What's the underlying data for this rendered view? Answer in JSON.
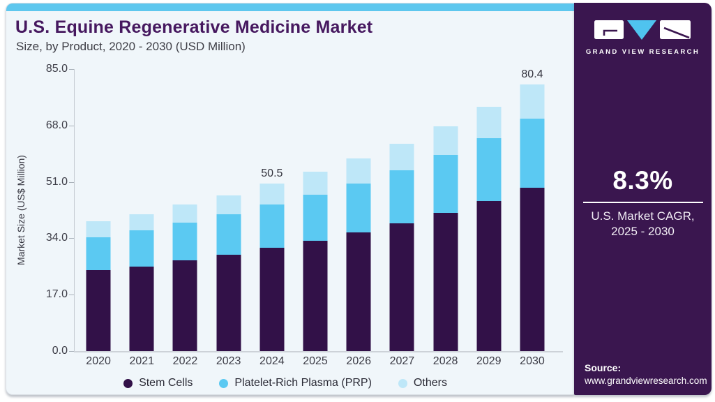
{
  "chart_data": {
    "type": "bar",
    "stacked": true,
    "title": "U.S. Equine Regenerative Medicine Market",
    "subtitle": "Size, by Product, 2020 - 2030 (USD Million)",
    "ylabel": "Market Size (US$ Million)",
    "ylim": [
      0,
      85
    ],
    "yticks": [
      {
        "label": "0.0",
        "value": 0
      },
      {
        "label": "17.0",
        "value": 17
      },
      {
        "label": "34.0",
        "value": 34
      },
      {
        "label": "51.0",
        "value": 51
      },
      {
        "label": "68.0",
        "value": 68
      },
      {
        "label": "85.0",
        "value": 85
      }
    ],
    "categories": [
      "2020",
      "2021",
      "2022",
      "2023",
      "2024",
      "2025",
      "2026",
      "2027",
      "2028",
      "2029",
      "2030"
    ],
    "series": [
      {
        "name": "Stem Cells",
        "color": "#321148",
        "values": [
          24.5,
          25.5,
          27.3,
          29.1,
          31.1,
          33.3,
          35.8,
          38.6,
          41.7,
          45.2,
          49.2
        ]
      },
      {
        "name": "Platelet-Rich Plasma (PRP)",
        "color": "#5bc9f2",
        "values": [
          9.8,
          10.9,
          11.4,
          12.1,
          13.2,
          13.8,
          14.8,
          16.0,
          17.5,
          19.0,
          20.9
        ]
      },
      {
        "name": "Others",
        "color": "#bee7f8",
        "values": [
          4.8,
          4.9,
          5.4,
          5.8,
          6.2,
          7.0,
          7.5,
          7.9,
          8.6,
          9.4,
          10.3
        ]
      }
    ],
    "totals": [
      39.1,
      41.3,
      44.1,
      47.0,
      50.5,
      54.1,
      58.1,
      62.5,
      67.8,
      73.6,
      80.4
    ],
    "value_labels": [
      "",
      "",
      "",
      "",
      "50.5",
      "",
      "",
      "",
      "",
      "",
      "80.4"
    ],
    "grid": false,
    "legend_position": "bottom"
  },
  "sidebar": {
    "logo_text": "GRAND VIEW RESEARCH",
    "cagr_value": "8.3%",
    "cagr_label_line1": "U.S. Market CAGR,",
    "cagr_label_line2": "2025 - 2030",
    "source_label": "Source:",
    "source_url": "www.grandviewresearch.com"
  },
  "colors": {
    "accent_strip": "#5ec7ee",
    "card_bg": "#f0f6fa",
    "title_purple": "#46185f",
    "sidebar_bg": "#3a164f",
    "logo_triangle_blue": "#4fc3ef"
  }
}
